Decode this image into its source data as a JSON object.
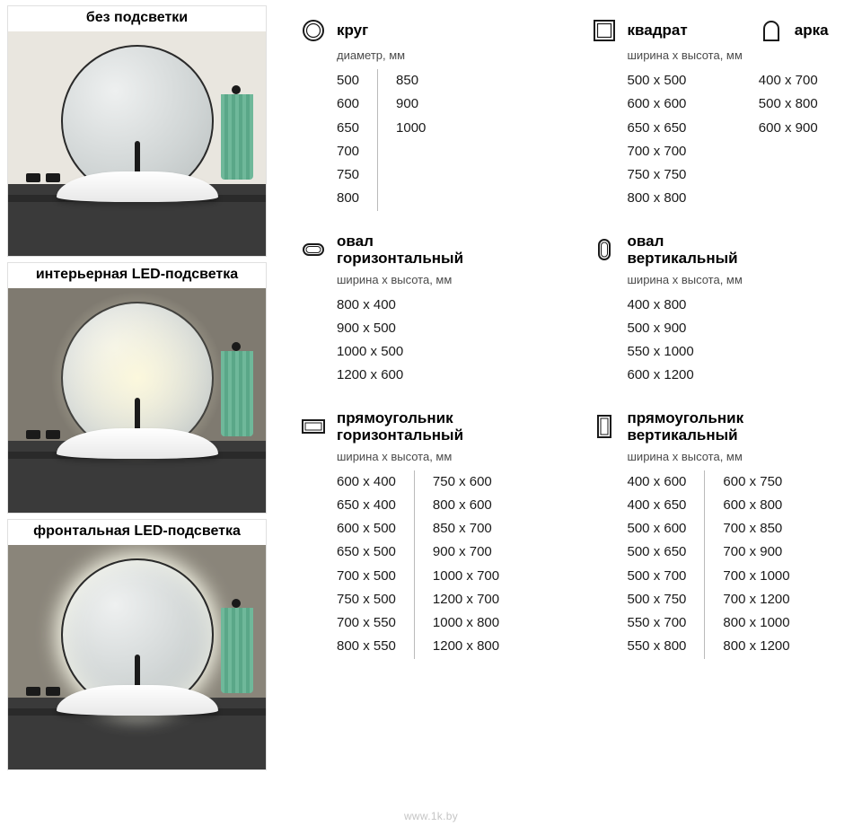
{
  "watermark": "www.1k.by",
  "gallery": [
    {
      "title": "без подсветки",
      "wall_color": "#e9e6df",
      "variant": "none"
    },
    {
      "title": "интерьерная LED-подсветка",
      "wall_color": "#7f7a70",
      "variant": "backlit"
    },
    {
      "title": "фронтальная LED-подсветка",
      "wall_color": "#8a857a",
      "variant": "frontlit"
    }
  ],
  "shapes": {
    "circle": {
      "title": "круг",
      "sub": "диаметр, мм",
      "cols": [
        [
          "500",
          "600",
          "650",
          "700",
          "750",
          "800"
        ],
        [
          "850",
          "900",
          "1000"
        ]
      ]
    },
    "square": {
      "title": "квадрат",
      "sub": "ширина х высота, мм",
      "cols": [
        [
          "500 х 500",
          "600 х 600",
          "650 х 650",
          "700 х 700",
          "750 х 750",
          "800 х 800"
        ]
      ]
    },
    "arch": {
      "title": "арка",
      "cols": [
        [
          "400 х 700",
          "500 х 800",
          "600 х 900"
        ]
      ]
    },
    "oval_h": {
      "title": "овал\nгоризонтальный",
      "sub": "ширина х высота, мм",
      "cols": [
        [
          "800 х 400",
          "900 х 500",
          "1000 х 500",
          "1200 х 600"
        ]
      ]
    },
    "oval_v": {
      "title": "овал\nвертикальный",
      "sub": "ширина х высота, мм",
      "cols": [
        [
          "400 х 800",
          "500 х 900",
          "550 х 1000",
          "600 х 1200"
        ]
      ]
    },
    "rect_h": {
      "title": "прямоугольник\nгоризонтальный",
      "sub": "ширина х высота, мм",
      "cols": [
        [
          "600 х 400",
          "650 х 400",
          "600 х 500",
          "650 х 500",
          "700 х 500",
          "750 х 500",
          "700 х 550",
          "800 х 550"
        ],
        [
          "750 х 600",
          "800 х 600",
          "850 х 700",
          "900 х 700",
          "1000 х 700",
          "1200 х 700",
          "1000 х 800",
          "1200 х 800"
        ]
      ]
    },
    "rect_v": {
      "title": "прямоугольник\nвертикальный",
      "sub": "ширина х высота, мм",
      "cols": [
        [
          "400 х 600",
          "400 х 650",
          "500 х 600",
          "500 х 650",
          "500 х 700",
          "500 х 750",
          "550 х 700",
          "550 х 800"
        ],
        [
          "600 х 750",
          "600 х 800",
          "700 х 850",
          "700 х 900",
          "700 х 1000",
          "700 х 1200",
          "800 х 1000",
          "800 х 1200"
        ]
      ]
    }
  },
  "colors": {
    "text": "#1a1a1a",
    "subtext": "#4a4a4a",
    "divider": "#bababa",
    "icon_stroke": "#1a1a1a"
  }
}
